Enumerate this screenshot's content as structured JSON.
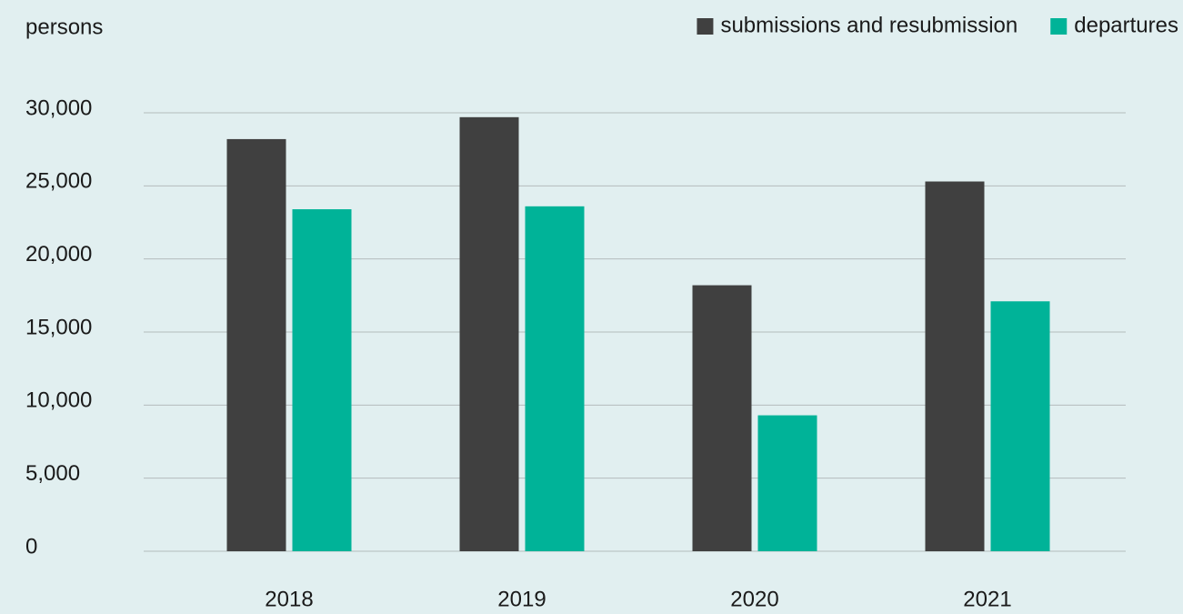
{
  "chart_data": {
    "type": "bar",
    "y_label": "persons",
    "categories": [
      "2018",
      "2019",
      "2020",
      "2021"
    ],
    "series": [
      {
        "name": "submissions and resubmission",
        "color": "#404040",
        "values": [
          28200,
          29700,
          18200,
          25300
        ]
      },
      {
        "name": "departures",
        "color": "#00b398",
        "values": [
          23400,
          23600,
          9300,
          17100
        ]
      }
    ],
    "ylim": [
      0,
      30000
    ],
    "yticks": [
      0,
      {
        "value": 5000,
        "label": "5,000"
      },
      {
        "value": 10000,
        "label": "10,000"
      },
      {
        "value": 15000,
        "label": "15,000"
      },
      {
        "value": 20000,
        "label": "20,000"
      },
      {
        "value": 25000,
        "label": "25,000"
      },
      {
        "value": 30000,
        "label": "30,000"
      }
    ],
    "grid": true,
    "legend": "top-right"
  }
}
